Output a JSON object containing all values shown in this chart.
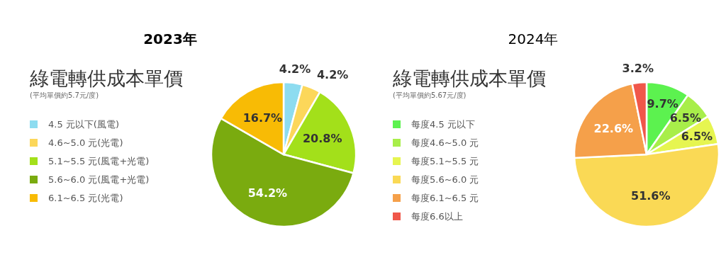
{
  "chart_data": [
    {
      "type": "pie",
      "title": "2023年",
      "subtitle": "綠電轉供成本單價",
      "annotations": [
        "(平均單價約5.7元/度)"
      ],
      "categories": [
        "4.5 元以下(風電)",
        "4.6~5.0 元(光電)",
        "5.1~5.5 元(風電+光電)",
        "5.6~6.0 元(風電+光電)",
        "6.1~6.5 元(光電)"
      ],
      "values": [
        4.2,
        4.2,
        20.8,
        54.2,
        16.7
      ],
      "value_labels": [
        "4.2%",
        "4.2%",
        "20.8%",
        "54.2%",
        "16.7%"
      ],
      "colors": [
        "#8ddcf0",
        "#fcd75a",
        "#a3e01a",
        "#7aab0f",
        "#f8bb05"
      ],
      "legend": "left"
    },
    {
      "type": "pie",
      "title": "2024年",
      "subtitle": "綠電轉供成本單價",
      "annotations": [
        "(平均單價約5.67元/度)"
      ],
      "categories": [
        "每度4.5 元以下",
        "每度4.6~5.0 元",
        "每度5.1~5.5 元",
        "每度5.6~6.0 元",
        "每度6.1~6.5 元",
        "每度6.6以上"
      ],
      "values": [
        9.7,
        6.5,
        6.5,
        51.6,
        22.6,
        3.2
      ],
      "value_labels": [
        "9.7%",
        "6.5%",
        "6.5%",
        "51.6%",
        "22.6%",
        "3.2%"
      ],
      "colors": [
        "#5cf24f",
        "#a8ee4a",
        "#e6f550",
        "#fad955",
        "#f5a04a",
        "#f0574a"
      ],
      "legend": "left"
    }
  ]
}
